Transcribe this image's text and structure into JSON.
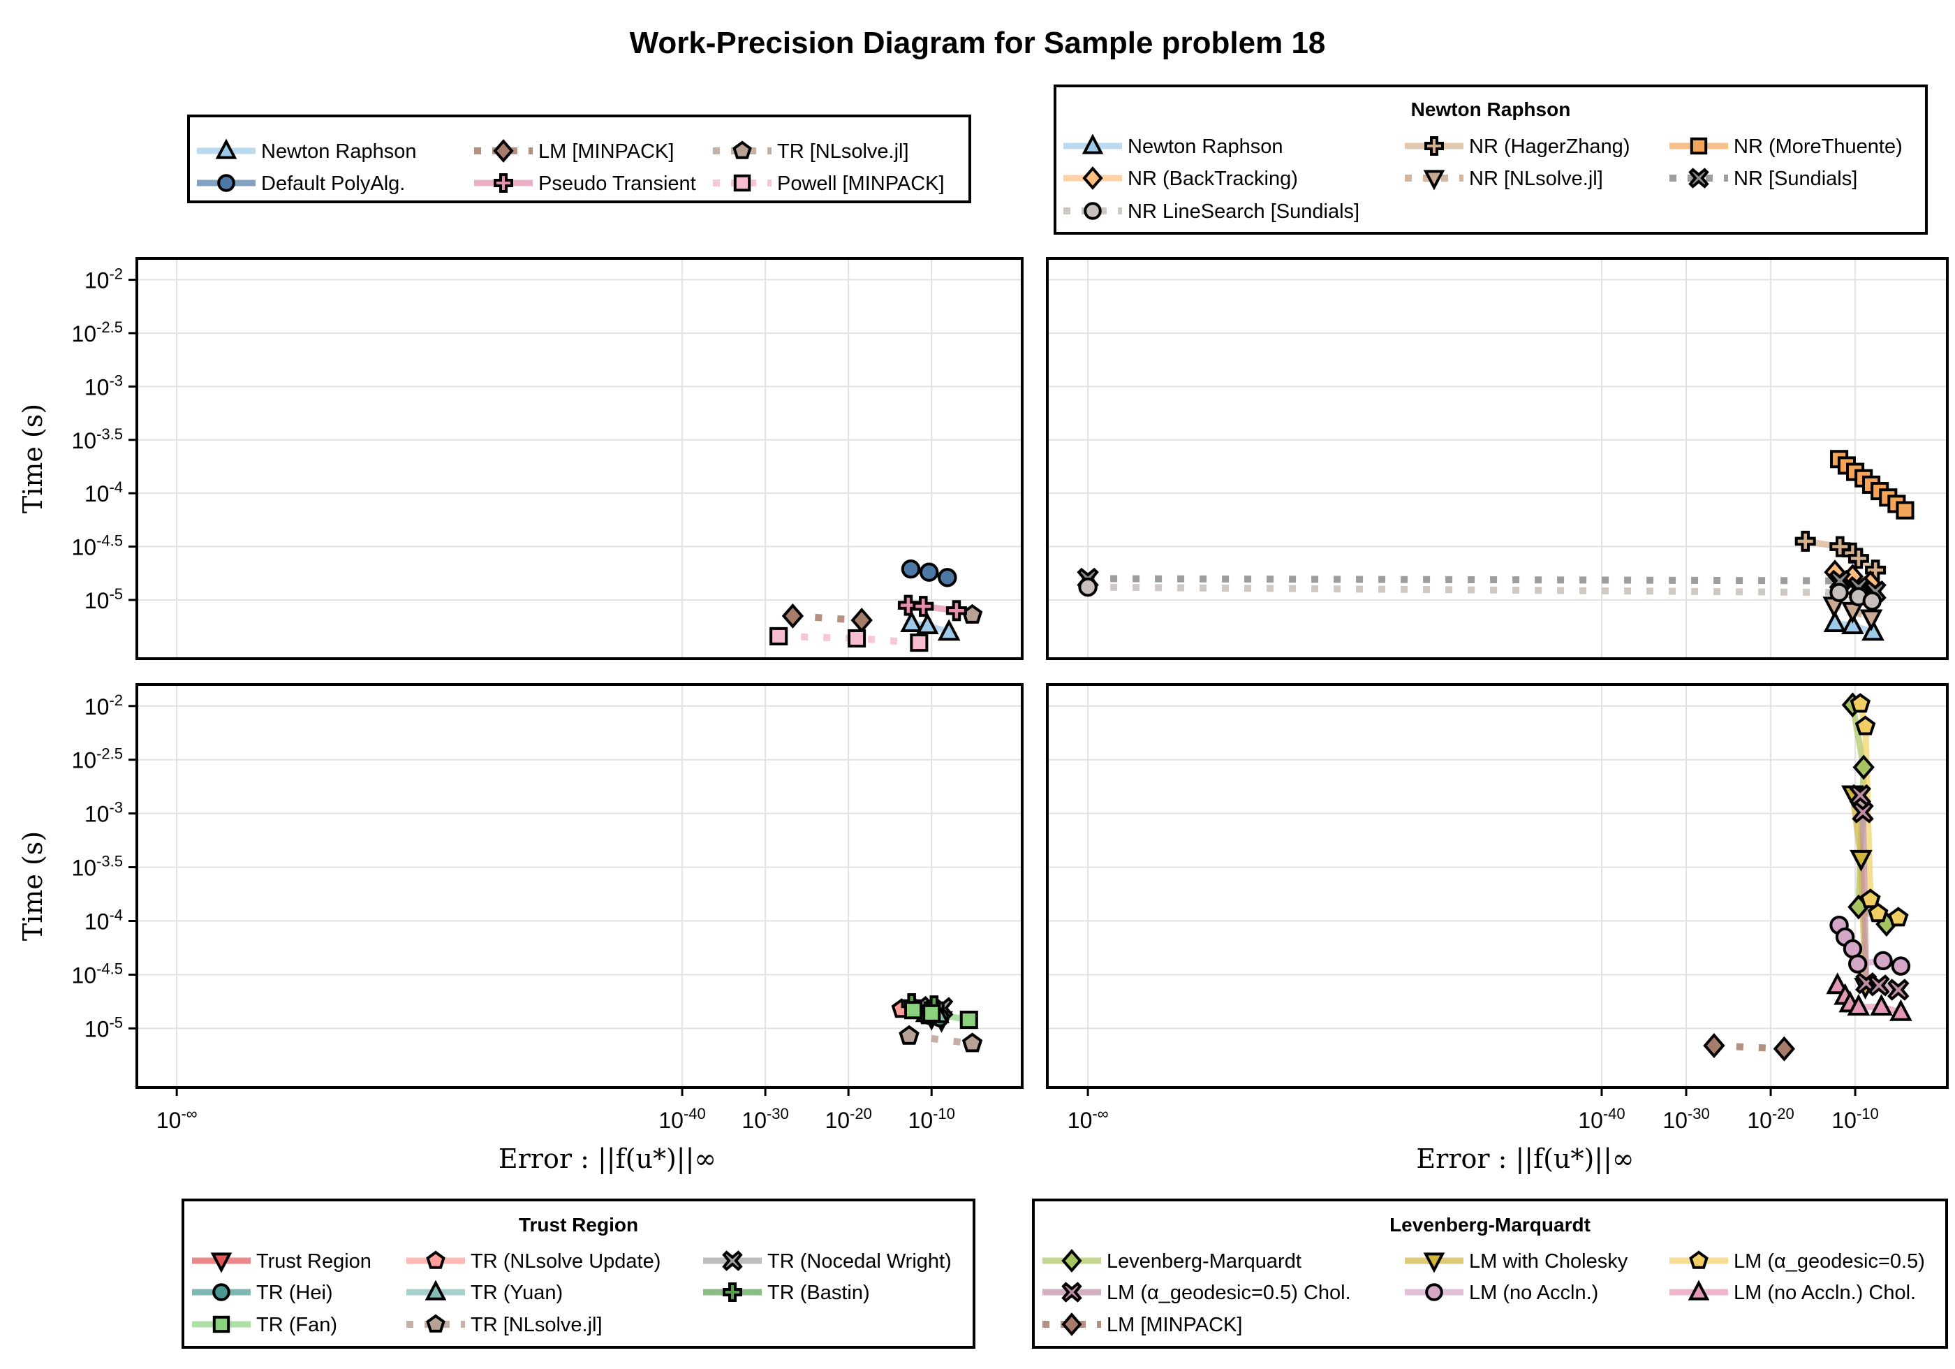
{
  "chart_data": {
    "type": "scatter",
    "title": "Work-Precision Diagram for Sample problem 18",
    "xlabel": "Error : ||f(u*)||∞",
    "ylabel": "Time (s)",
    "x_scale": "log10 (with 10^-∞ for exact zero)",
    "xlim_log10": [
      -105.6,
      0.9
    ],
    "ylim_log10": [
      -5.55,
      -1.8
    ],
    "tick_base": "10",
    "x_ticks": [
      {
        "exp": "-∞",
        "v": "-inf"
      },
      {
        "exp": "-40",
        "v": -40
      },
      {
        "exp": "-30",
        "v": -30
      },
      {
        "exp": "-20",
        "v": -20
      },
      {
        "exp": "-10",
        "v": -10
      }
    ],
    "y_ticks": [
      {
        "exp": "-2",
        "v": -2
      },
      {
        "exp": "-2.5",
        "v": -2.5
      },
      {
        "exp": "-3",
        "v": -3
      },
      {
        "exp": "-3.5",
        "v": -3.5
      },
      {
        "exp": "-4",
        "v": -4
      },
      {
        "exp": "-4.5",
        "v": -4.5
      },
      {
        "exp": "-5",
        "v": -5
      }
    ],
    "grid": true,
    "panels": [
      {
        "id": "top-left",
        "legend": {
          "title": "",
          "placement": "above top-left panel"
        },
        "series": [
          {
            "name": "Newton Raphson",
            "color": "#9ecae9",
            "marker": "triangle",
            "style": "solid",
            "points": [
              [
                -12.4,
                -5.22
              ],
              [
                -10.5,
                -5.24
              ],
              [
                -7.9,
                -5.3
              ]
            ]
          },
          {
            "name": "LM [MINPACK]",
            "color": "#a87c6b",
            "marker": "diamond",
            "style": "dotted",
            "points": [
              [
                -26.7,
                -5.15
              ],
              [
                -18.4,
                -5.19
              ]
            ]
          },
          {
            "name": "TR [NLsolve.jl]",
            "color": "#b8a296",
            "marker": "pentagon",
            "style": "dotted",
            "points": [
              [
                -5.1,
                -5.14
              ]
            ]
          },
          {
            "name": "Default PolyAlg.",
            "color": "#4e79a7",
            "marker": "circle",
            "style": "solid",
            "points": [
              [
                -12.5,
                -4.71
              ],
              [
                -10.3,
                -4.74
              ],
              [
                -8.1,
                -4.79
              ]
            ]
          },
          {
            "name": "Pseudo Transient",
            "color": "#e48fae",
            "marker": "plus",
            "style": "solid",
            "points": [
              [
                -12.8,
                -5.05
              ],
              [
                -11.0,
                -5.06
              ],
              [
                -7.0,
                -5.1
              ]
            ]
          },
          {
            "name": "Powell [MINPACK]",
            "color": "#f7bcd0",
            "marker": "square",
            "style": "dotted",
            "points": [
              [
                -28.4,
                -5.34
              ],
              [
                -19.0,
                -5.36
              ],
              [
                -11.5,
                -5.4
              ]
            ]
          }
        ]
      },
      {
        "id": "top-right",
        "legend": {
          "title": "Newton Raphson",
          "placement": "above top-right panel"
        },
        "series": [
          {
            "name": "Newton Raphson",
            "color": "#9ecae9",
            "marker": "triangle",
            "style": "solid",
            "points": [
              [
                -12.4,
                -5.22
              ],
              [
                -10.3,
                -5.24
              ],
              [
                -7.9,
                -5.3
              ]
            ]
          },
          {
            "name": "NR (HagerZhang)",
            "color": "#d4b08c",
            "marker": "plus",
            "style": "solid",
            "points": [
              [
                -15.9,
                -4.45
              ],
              [
                -11.8,
                -4.5
              ],
              [
                -10.3,
                -4.56
              ],
              [
                -9.6,
                -4.61
              ],
              [
                -7.6,
                -4.72
              ]
            ]
          },
          {
            "name": "NR (MoreThuente)",
            "color": "#f4a55a",
            "marker": "square",
            "style": "solid",
            "points": [
              [
                -11.9,
                -3.68
              ],
              [
                -11.0,
                -3.74
              ],
              [
                -10.0,
                -3.8
              ],
              [
                -9.0,
                -3.86
              ],
              [
                -8.1,
                -3.92
              ],
              [
                -7.1,
                -3.98
              ],
              [
                -6.1,
                -4.04
              ],
              [
                -5.1,
                -4.1
              ],
              [
                -4.1,
                -4.16
              ]
            ]
          },
          {
            "name": "NR (BackTracking)",
            "color": "#ffbe7d",
            "marker": "diamond",
            "style": "solid",
            "points": [
              [
                -12.4,
                -4.74
              ],
              [
                -10.3,
                -4.78
              ],
              [
                -8.2,
                -4.84
              ]
            ]
          },
          {
            "name": "NR [NLsolve.jl]",
            "color": "#c9a992",
            "marker": "dtriangle",
            "style": "dotted",
            "points": [
              [
                -12.5,
                -5.05
              ],
              [
                -10.3,
                -5.1
              ],
              [
                -8.1,
                -5.17
              ]
            ]
          },
          {
            "name": "NR [Sundials]",
            "color": "#8c8c8c",
            "marker": "cross",
            "style": "dotted",
            "points": [
              [
                "-inf",
                -4.8
              ],
              [
                -11.8,
                -4.82
              ],
              [
                -9.6,
                -4.88
              ],
              [
                -7.6,
                -4.92
              ]
            ]
          },
          {
            "name": "NR LineSearch [Sundials]",
            "color": "#c7c0bc",
            "marker": "circle",
            "style": "dotted",
            "points": [
              [
                "-inf",
                -4.88
              ],
              [
                -11.9,
                -4.93
              ],
              [
                -9.6,
                -4.97
              ],
              [
                -8.0,
                -5.01
              ]
            ]
          }
        ]
      },
      {
        "id": "bottom-left",
        "legend": {
          "title": "Trust Region",
          "placement": "below bottom-left panel"
        },
        "series": [
          {
            "name": "Trust Region",
            "color": "#e15759",
            "marker": "dtriangle",
            "style": "solid",
            "points": [
              [
                -10.0,
                -4.9
              ],
              [
                -8.8,
                -4.92
              ]
            ]
          },
          {
            "name": "TR (NLsolve Update)",
            "color": "#ff9d9a",
            "marker": "pentagon",
            "style": "solid",
            "points": [
              [
                -13.6,
                -4.82
              ],
              [
                -10.5,
                -4.88
              ]
            ]
          },
          {
            "name": "TR (Nocedal Wright)",
            "color": "#a0a0a0",
            "marker": "cross",
            "style": "solid",
            "points": [
              [
                -11.5,
                -4.8
              ],
              [
                -8.7,
                -4.81
              ]
            ]
          },
          {
            "name": "TR (Hei)",
            "color": "#499894",
            "marker": "circle",
            "style": "solid",
            "points": [
              [
                -10.2,
                -4.88
              ],
              [
                -9.0,
                -4.9
              ]
            ]
          },
          {
            "name": "TR (Yuan)",
            "color": "#86bcb6",
            "marker": "triangle",
            "style": "solid",
            "points": [
              [
                -10.6,
                -4.86
              ],
              [
                -9.2,
                -4.87
              ]
            ]
          },
          {
            "name": "TR (Bastin)",
            "color": "#59a14f",
            "marker": "plus",
            "style": "solid",
            "points": [
              [
                -12.4,
                -4.77
              ],
              [
                -9.7,
                -4.79
              ]
            ]
          },
          {
            "name": "TR (Fan)",
            "color": "#8cd17d",
            "marker": "square",
            "style": "solid",
            "points": [
              [
                -12.2,
                -4.83
              ],
              [
                -10.0,
                -4.86
              ],
              [
                -5.5,
                -4.92
              ]
            ]
          },
          {
            "name": "TR [NLsolve.jl]",
            "color": "#b8a296",
            "marker": "pentagon",
            "style": "dotted",
            "points": [
              [
                -12.7,
                -5.07
              ],
              [
                -5.1,
                -5.14
              ]
            ]
          }
        ]
      },
      {
        "id": "bottom-right",
        "legend": {
          "title": "Levenberg-Marquardt",
          "placement": "below bottom-right panel"
        },
        "series": [
          {
            "name": "Levenberg-Marquardt",
            "color": "#a8c460",
            "marker": "diamond",
            "style": "solid",
            "points": [
              [
                -10.3,
                -1.99
              ],
              [
                -9.0,
                -2.57
              ],
              [
                -9.6,
                -3.87
              ],
              [
                -6.3,
                -4.03
              ]
            ]
          },
          {
            "name": "LM with Cholesky",
            "color": "#d1b440",
            "marker": "dtriangle",
            "style": "solid",
            "points": [
              [
                -10.3,
                -2.82
              ],
              [
                -9.3,
                -3.42
              ],
              [
                -8.8,
                -4.61
              ]
            ]
          },
          {
            "name": "LM (α_geodesic=0.5)",
            "color": "#f1ce63",
            "marker": "pentagon",
            "style": "solid",
            "points": [
              [
                -9.4,
                -1.98
              ],
              [
                -8.8,
                -2.19
              ],
              [
                -8.2,
                -3.8
              ],
              [
                -7.3,
                -3.93
              ],
              [
                -4.9,
                -3.97
              ]
            ]
          },
          {
            "name": "LM (α_geodesic=0.5) Chol.",
            "color": "#c08ea6",
            "marker": "cross",
            "style": "solid",
            "points": [
              [
                -9.4,
                -2.83
              ],
              [
                -9.1,
                -2.99
              ],
              [
                -8.7,
                -4.58
              ],
              [
                -7.2,
                -4.6
              ],
              [
                -4.9,
                -4.64
              ]
            ]
          },
          {
            "name": "LM (no Accln.)",
            "color": "#d4a6c8",
            "marker": "circle",
            "style": "solid",
            "points": [
              [
                -11.9,
                -4.04
              ],
              [
                -11.2,
                -4.15
              ],
              [
                -10.3,
                -4.26
              ],
              [
                -9.7,
                -4.4
              ],
              [
                -6.7,
                -4.37
              ],
              [
                -4.6,
                -4.42
              ]
            ]
          },
          {
            "name": "LM (no Accln.) Chol.",
            "color": "#e597b8",
            "marker": "triangle",
            "style": "solid",
            "points": [
              [
                -12.1,
                -4.6
              ],
              [
                -11.2,
                -4.7
              ],
              [
                -10.6,
                -4.77
              ],
              [
                -9.6,
                -4.8
              ],
              [
                -6.9,
                -4.8
              ],
              [
                -4.6,
                -4.85
              ]
            ]
          },
          {
            "name": "LM [MINPACK]",
            "color": "#a87c6b",
            "marker": "diamond",
            "style": "dotted",
            "points": [
              [
                -26.7,
                -5.16
              ],
              [
                -18.4,
                -5.19
              ]
            ]
          }
        ]
      }
    ]
  }
}
